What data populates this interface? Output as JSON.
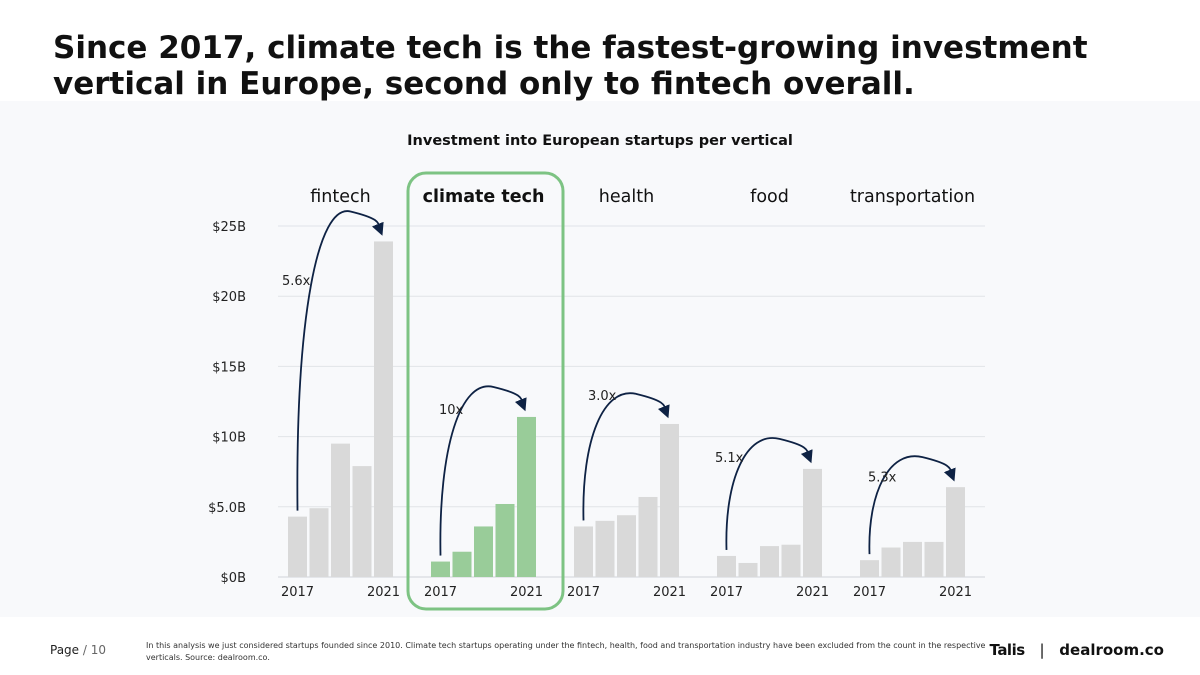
{
  "headline": "Since 2017, climate tech is the fastest-growing investment vertical in Europe, second only to fintech overall.",
  "chart_data": {
    "type": "bar",
    "title": "Investment into European startups per vertical",
    "xlabel": "",
    "ylabel": "",
    "ylim": [
      0,
      25
    ],
    "y_ticks": [
      {
        "value": 25,
        "label": "$25B"
      },
      {
        "value": 20,
        "label": "$20B"
      },
      {
        "value": 15,
        "label": "$15B"
      },
      {
        "value": 10,
        "label": "$10B"
      },
      {
        "value": 5,
        "label": "$5.0B"
      },
      {
        "value": 0,
        "label": "$0B"
      }
    ],
    "grid": true,
    "highlight_group": "climate tech",
    "groups": [
      {
        "name": "fintech",
        "first_label": "2017",
        "last_label": "2021",
        "values": [
          4.3,
          4.9,
          9.5,
          7.9,
          23.9
        ],
        "growth": "5.6x",
        "color": "#d9d9d9"
      },
      {
        "name": "climate tech",
        "first_label": "2017",
        "last_label": "2021",
        "values": [
          1.1,
          1.8,
          3.6,
          5.2,
          11.4
        ],
        "growth": "10x",
        "color": "#99cc99"
      },
      {
        "name": "health",
        "first_label": "2017",
        "last_label": "2021",
        "values": [
          3.6,
          4.0,
          4.4,
          5.7,
          10.9
        ],
        "growth": "3.0x",
        "color": "#d9d9d9"
      },
      {
        "name": "food",
        "first_label": "2017",
        "last_label": "2021",
        "values": [
          1.5,
          1.0,
          2.2,
          2.3,
          7.7
        ],
        "growth": "5.1x",
        "color": "#d9d9d9"
      },
      {
        "name": "transportation",
        "first_label": "2017",
        "last_label": "2021",
        "values": [
          1.2,
          2.1,
          2.5,
          2.5,
          6.4
        ],
        "growth": "5.3x",
        "color": "#d9d9d9"
      }
    ]
  },
  "colors": {
    "bar_default": "#d9d9d9",
    "bar_highlight": "#99cc99",
    "highlight_border": "#7dc383",
    "arrow": "#0e2244"
  },
  "footer": {
    "page_label": "Page",
    "page_number": "/ 10",
    "footnote": "In this analysis we just considered startups founded since 2010. Climate tech startups operating under the fintech, health, food and transportation industry have been excluded from the count in the respective verticals. Source: dealroom.co.",
    "brand_left": "Talis",
    "brand_separator": "|",
    "brand_right": "dealroom.co"
  }
}
